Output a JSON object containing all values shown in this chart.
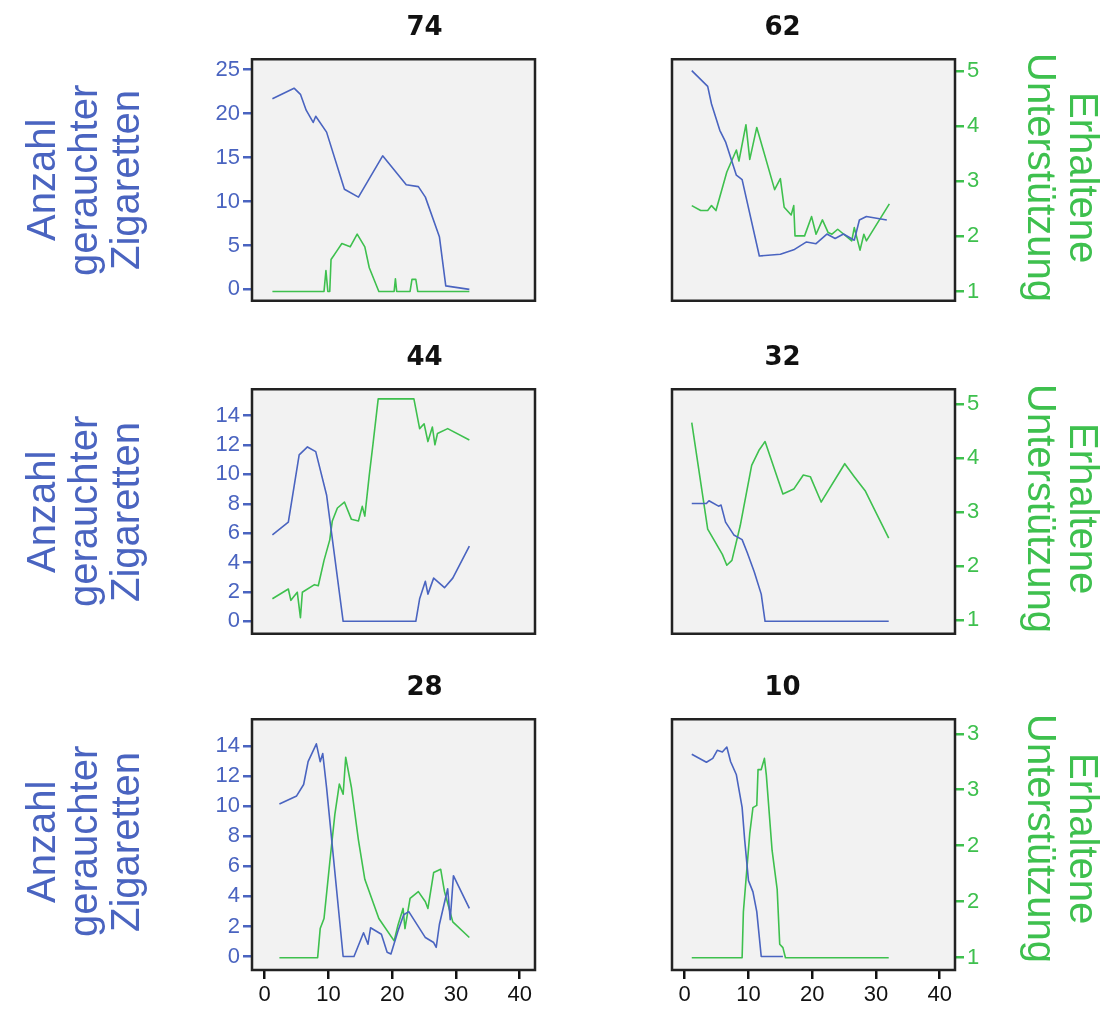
{
  "chart_data": [
    {
      "type": "line",
      "title": "74",
      "ylabel": "Anzahl gerauchter Zigaretten",
      "tick_labels": "y",
      "marker": "none",
      "legend": false,
      "xlim": [
        -2,
        42.4
      ],
      "ylim": [
        -1.3,
        26.2
      ],
      "yticks": [
        0,
        5,
        10,
        15,
        20,
        25
      ],
      "y2lim": [
        0.83,
        5.22
      ],
      "series": [
        {
          "color": "#4a64c0",
          "x": [
            1.2,
            4.6,
            5.6,
            6.5,
            7.6,
            8.0,
            9.7,
            12.5,
            14.7,
            18.5,
            22.2,
            24.1,
            25.2,
            27.4,
            28.4,
            32.1
          ],
          "values": [
            21.7,
            22.9,
            22.2,
            20.4,
            19.0,
            19.7,
            17.9,
            11.4,
            10.5,
            15.2,
            11.9,
            11.7,
            10.5,
            6.0,
            0.4,
            0
          ]
        },
        {
          "color": "#3ec04e",
          "axis": "y2",
          "x": [
            1.2,
            9.3,
            9.6,
            9.9,
            10.2,
            10.4,
            11.4,
            12.1,
            13.4,
            14.5,
            15.7,
            16.4,
            17.9,
            20.3,
            20.5,
            20.7,
            22.8,
            23.1,
            23.7,
            24.0,
            32.1
          ],
          "values": [
            1,
            1,
            1.38,
            1,
            1,
            1.58,
            1.75,
            1.87,
            1.81,
            2.04,
            1.81,
            1.43,
            1,
            1,
            1.23,
            1,
            1,
            1.22,
            1.22,
            1,
            1
          ]
        }
      ]
    },
    {
      "type": "line",
      "title": "62",
      "y2label": "Erhaltene Unterstützung",
      "tick_labels": "y2",
      "marker": "none",
      "legend": false,
      "xlim": [
        -2,
        42.4
      ],
      "ylim": [
        -1.3,
        26.2
      ],
      "y2lim": [
        0.83,
        5.22
      ],
      "y2ticks": [
        1,
        2,
        3,
        4,
        5
      ],
      "series": [
        {
          "color": "#4a64c0",
          "x": [
            1.1,
            3.6,
            4.2,
            5.5,
            6.4,
            8.1,
            9.0,
            11.7,
            15.0,
            17.1,
            19.1,
            20.6,
            22.3,
            23.6,
            24.9,
            26.6,
            27.4,
            28.5,
            31.7
          ],
          "values": [
            24.9,
            23.1,
            21.1,
            18.1,
            16.8,
            13.0,
            12.5,
            3.8,
            4.0,
            4.5,
            5.4,
            5.2,
            6.3,
            5.8,
            6.3,
            5.6,
            7.9,
            8.3,
            7.9
          ]
        },
        {
          "color": "#3ec04e",
          "axis": "y2",
          "x": [
            1.1,
            2.5,
            3.6,
            4.2,
            4.9,
            6.6,
            8.1,
            8.5,
            9.6,
            10.2,
            11.3,
            14.1,
            15.0,
            15.6,
            16.7,
            17.1,
            17.3,
            18.8,
            19.9,
            20.6,
            21.6,
            22.5,
            23.1,
            24.0,
            26.2,
            26.6,
            27.5,
            28.1,
            28.5,
            32.1
          ],
          "values": [
            2.56,
            2.47,
            2.47,
            2.56,
            2.47,
            3.17,
            3.57,
            3.37,
            4.03,
            3.4,
            3.98,
            2.85,
            3.05,
            2.53,
            2.39,
            2.56,
            2.01,
            2.01,
            2.36,
            2.04,
            2.3,
            2.07,
            2.04,
            2.13,
            1.92,
            2.16,
            1.75,
            2.04,
            1.92,
            2.59
          ]
        }
      ]
    },
    {
      "type": "line",
      "title": "44",
      "ylabel": "Anzahl gerauchter Zigaretten",
      "tick_labels": "y",
      "marker": "none",
      "legend": false,
      "xlim": [
        -2,
        42.4
      ],
      "ylim": [
        -0.85,
        15.8
      ],
      "yticks": [
        0,
        2,
        4,
        6,
        8,
        10,
        12,
        14
      ],
      "y2lim": [
        0.75,
        5.28
      ],
      "series": [
        {
          "color": "#4a64c0",
          "x": [
            1.2,
            3.7,
            5.4,
            6.7,
            8.0,
            9.7,
            12.3,
            23.7,
            24.3,
            25.2,
            25.6,
            26.5,
            28.2,
            29.5,
            32.1
          ],
          "values": [
            5.88,
            6.75,
            11.33,
            11.87,
            11.55,
            8.6,
            0,
            0,
            1.53,
            2.72,
            1.85,
            2.94,
            2.29,
            2.94,
            5.12
          ]
        },
        {
          "color": "#3ec04e",
          "axis": "y2",
          "x": [
            1.2,
            3.7,
            4.1,
            5.1,
            5.6,
            5.9,
            7.8,
            8.4,
            9.3,
            10.2,
            10.6,
            11.4,
            12.5,
            13.6,
            14.7,
            15.3,
            15.7,
            16.4,
            17.0,
            17.8,
            23.4,
            24.3,
            25.0,
            25.6,
            26.3,
            26.7,
            27.1,
            28.7,
            32.1
          ],
          "values": [
            1.4,
            1.58,
            1.37,
            1.52,
            1.05,
            1.52,
            1.66,
            1.64,
            2.11,
            2.49,
            2.84,
            3.08,
            3.19,
            2.87,
            2.84,
            3.11,
            2.93,
            3.69,
            4.28,
            5.1,
            5.1,
            4.55,
            4.64,
            4.31,
            4.58,
            4.25,
            4.46,
            4.55,
            4.34
          ]
        }
      ]
    },
    {
      "type": "line",
      "title": "32",
      "y2label": "Erhaltene Unterstützung",
      "tick_labels": "y2",
      "marker": "none",
      "legend": false,
      "xlim": [
        -2,
        42.4
      ],
      "ylim": [
        -0.85,
        15.8
      ],
      "y2lim": [
        0.75,
        5.28
      ],
      "y2ticks": [
        1,
        2,
        3,
        4,
        5
      ],
      "series": [
        {
          "color": "#4a64c0",
          "x": [
            1.1,
            3.4,
            3.8,
            5.3,
            5.7,
            6.4,
            7.7,
            9.0,
            9.8,
            10.9,
            12.0,
            12.6,
            32.0
          ],
          "values": [
            8.02,
            8.02,
            8.21,
            7.84,
            7.91,
            6.75,
            5.88,
            5.56,
            4.68,
            3.38,
            1.85,
            0,
            0
          ]
        },
        {
          "color": "#3ec04e",
          "axis": "y2",
          "x": [
            1.1,
            3.6,
            5.9,
            6.6,
            7.4,
            8.7,
            10.5,
            11.7,
            12.6,
            15.4,
            17.1,
            18.6,
            19.7,
            21.4,
            25.1,
            26.6,
            28.3,
            32.0
          ],
          "values": [
            4.66,
            2.69,
            2.22,
            2.02,
            2.11,
            2.75,
            3.87,
            4.16,
            4.31,
            3.34,
            3.43,
            3.69,
            3.66,
            3.19,
            3.9,
            3.66,
            3.4,
            2.52
          ]
        }
      ]
    },
    {
      "type": "line",
      "title": "28",
      "ylabel": "Anzahl gerauchter Zigaretten",
      "tick_labels": "xy",
      "marker": "none",
      "legend": false,
      "xlim": [
        -2,
        42.4
      ],
      "xticks": [
        0,
        10,
        20,
        30,
        40
      ],
      "ylim": [
        -0.9,
        15.8
      ],
      "yticks": [
        0,
        2,
        4,
        6,
        8,
        10,
        12,
        14
      ],
      "y2lim": [
        0.89,
        3.13
      ],
      "series": [
        {
          "color": "#4a64c0",
          "x": [
            2.3,
            5.0,
            6.1,
            6.8,
            8.1,
            8.7,
            9.1,
            9.7,
            12.3,
            14.0,
            15.5,
            16.2,
            16.6,
            18.3,
            19.2,
            19.8,
            20.9,
            21.8,
            22.6,
            25.2,
            26.5,
            26.9,
            27.4,
            28.7,
            29.1,
            29.6,
            32.1
          ],
          "values": [
            10.15,
            10.69,
            11.45,
            12.97,
            14.16,
            12.97,
            13.51,
            11.24,
            0,
            0,
            1.58,
            0.82,
            1.91,
            1.48,
            0.28,
            0.17,
            1.69,
            2.78,
            2.99,
            1.26,
            0.93,
            0.61,
            2.13,
            4.51,
            2.45,
            5.38,
            3.21
          ]
        },
        {
          "color": "#3ec04e",
          "axis": "y2",
          "x": [
            2.3,
            8.3,
            8.7,
            9.3,
            10.2,
            11.0,
            11.7,
            12.3,
            12.7,
            13.6,
            14.7,
            15.7,
            17.9,
            20.3,
            20.9,
            21.7,
            22.0,
            22.8,
            24.1,
            25.2,
            25.6,
            26.5,
            27.6,
            28.2,
            29.5,
            32.1
          ],
          "values": [
            1,
            1,
            1.26,
            1.35,
            1.85,
            2.28,
            2.55,
            2.46,
            2.79,
            2.52,
            2.05,
            1.7,
            1.35,
            1.15,
            1.29,
            1.44,
            1.26,
            1.53,
            1.59,
            1.5,
            1.44,
            1.76,
            1.79,
            1.59,
            1.32,
            1.18
          ]
        }
      ]
    },
    {
      "type": "line",
      "title": "10",
      "y2label": "Erhaltene Unterstützung",
      "tick_labels": "xy2",
      "marker": "none",
      "legend": false,
      "xlim": [
        -2,
        42.4
      ],
      "xticks": [
        0,
        10,
        20,
        30,
        40
      ],
      "ylim": [
        -0.9,
        15.8
      ],
      "y2lim": [
        0.89,
        3.13
      ],
      "y2ticks": [
        1,
        {
          "value": 1.5,
          "label": "2"
        },
        2,
        {
          "value": 2.5,
          "label": "3"
        },
        3
      ],
      "series": [
        {
          "color": "#4a64c0",
          "x": [
            1.1,
            3.4,
            4.4,
            5.1,
            5.9,
            6.6,
            7.2,
            8.1,
            9.0,
            9.4,
            10.0,
            10.7,
            11.3,
            12.0,
            15.4
          ],
          "values": [
            13.47,
            12.93,
            13.19,
            13.73,
            13.62,
            13.95,
            12.97,
            12.1,
            9.93,
            7.77,
            5.05,
            4.3,
            2.99,
            0,
            0
          ]
        },
        {
          "color": "#3ec04e",
          "axis": "y2",
          "x": [
            1.1,
            9.0,
            9.2,
            10.2,
            10.7,
            11.3,
            11.5,
            12.0,
            12.5,
            12.8,
            13.7,
            14.5,
            14.9,
            15.4,
            15.8,
            32.0
          ],
          "values": [
            1,
            1,
            1.41,
            2.11,
            2.34,
            2.36,
            2.68,
            2.68,
            2.78,
            2.63,
            1.96,
            1.61,
            1.12,
            1.09,
            1,
            1
          ]
        }
      ]
    }
  ]
}
